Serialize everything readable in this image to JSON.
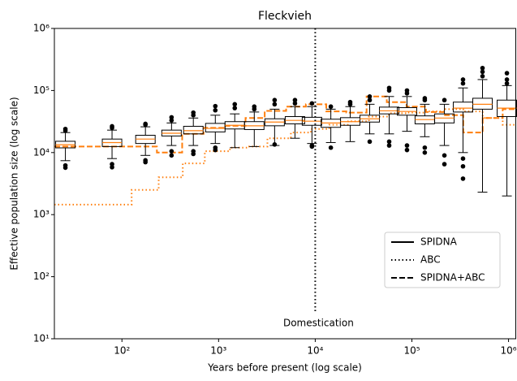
{
  "chart_data": {
    "type": "box",
    "title": "Fleckvieh",
    "xlabel": "Years before present (log scale)",
    "ylabel": "Effective population size (log scale)",
    "xscale": "log",
    "yscale": "log",
    "xlim": [
      20,
      1200000
    ],
    "ylim": [
      10,
      1000000
    ],
    "xticks": [
      {
        "value": 100,
        "label": "10²"
      },
      {
        "value": 1000,
        "label": "10³"
      },
      {
        "value": 10000,
        "label": "10⁴"
      },
      {
        "value": 100000,
        "label": "10⁵"
      },
      {
        "value": 1000000,
        "label": "10⁶"
      }
    ],
    "yticks": [
      {
        "value": 10,
        "label": "10¹"
      },
      {
        "value": 100,
        "label": "10²"
      },
      {
        "value": 1000,
        "label": "10³"
      },
      {
        "value": 10000,
        "label": "10⁴"
      },
      {
        "value": 100000,
        "label": "10⁵"
      },
      {
        "value": 1000000,
        "label": "10⁶"
      }
    ],
    "boxes": {
      "name": "SPIDNA",
      "color": "#000000",
      "median_color": "#ff7f0e",
      "x": [
        26,
        79,
        175,
        326,
        548,
        925,
        1470,
        2340,
        3800,
        6170,
        9250,
        14500,
        23000,
        36600,
        58200,
        89000,
        136000,
        217000,
        338000,
        538000,
        962000
      ],
      "whislo": [
        7400,
        8000,
        9000,
        13000,
        13000,
        14000,
        12000,
        12500,
        13000,
        17000,
        14000,
        14500,
        15000,
        20000,
        20000,
        22000,
        18000,
        13000,
        10000,
        2300,
        2000
      ],
      "q1": [
        11900,
        12500,
        14000,
        18500,
        20000,
        21500,
        24000,
        23500,
        27000,
        29000,
        27500,
        25500,
        27500,
        31000,
        42000,
        40000,
        29000,
        30000,
        45000,
        50000,
        38000
      ],
      "med": [
        13400,
        14500,
        16500,
        20500,
        22500,
        24500,
        27500,
        27000,
        31000,
        33000,
        32000,
        30000,
        31500,
        35000,
        47000,
        46000,
        34000,
        36000,
        52000,
        60000,
        52000
      ],
      "q3": [
        15200,
        16500,
        19000,
        23000,
        26500,
        29500,
        31500,
        31500,
        35000,
        38000,
        37000,
        34500,
        36500,
        40000,
        54000,
        53000,
        39000,
        42000,
        65000,
        75000,
        70000
      ],
      "whishi": [
        21000,
        23000,
        26000,
        30000,
        36000,
        40000,
        42000,
        45000,
        50000,
        55000,
        55000,
        50000,
        55000,
        60000,
        80000,
        80000,
        60000,
        60000,
        110000,
        150000,
        120000
      ],
      "fliers": [
        [
          5700,
          6200,
          22500,
          24000
        ],
        [
          5800,
          6500,
          25000,
          26500
        ],
        [
          7000,
          7500,
          28000,
          29000
        ],
        [
          9000,
          10500,
          33000,
          37000
        ],
        [
          9500,
          10500,
          40000,
          44000
        ],
        [
          11000,
          12000,
          48000,
          56000
        ],
        [
          52000,
          60000
        ],
        [
          50000,
          55000
        ],
        [
          13500,
          60000,
          70000
        ],
        [
          62000,
          70000
        ],
        [
          12500,
          13000,
          62000
        ],
        [
          12000,
          55000
        ],
        [
          60000,
          65000
        ],
        [
          15000,
          70000,
          80000
        ],
        [
          13000,
          15000,
          100000,
          110000
        ],
        [
          11000,
          13000,
          90000,
          100000
        ],
        [
          10000,
          12000,
          70000,
          75000
        ],
        [
          6500,
          9000,
          70000
        ],
        [
          3800,
          6000,
          8000,
          130000,
          150000
        ],
        [
          170000,
          200000,
          230000
        ],
        [
          130000,
          150000,
          190000
        ]
      ]
    },
    "series": [
      {
        "name": "ABC",
        "color": "#ff7f0e",
        "style": "dotted",
        "x": [
          20,
          126,
          240,
          426,
          720,
          1310,
          2000,
          3200,
          5600,
          9000,
          14000,
          22000,
          36000,
          58000,
          90000,
          140000,
          220000,
          340000,
          540000,
          870000,
          1200000
        ],
        "values": [
          1450,
          2500,
          4000,
          6700,
          10500,
          12000,
          12500,
          17000,
          21000,
          24000,
          28000,
          32000,
          38000,
          43000,
          44000,
          46000,
          50000,
          46000,
          36000,
          28000,
          28000
        ]
      },
      {
        "name": "SPIDNA+ABC",
        "color": "#ff7f0e",
        "style": "dashed",
        "x": [
          20,
          110,
          230,
          420,
          700,
          1150,
          1900,
          3000,
          5000,
          8000,
          13000,
          21000,
          34000,
          55000,
          88000,
          140000,
          220000,
          340000,
          540000,
          870000,
          1200000
        ],
        "values": [
          12500,
          12500,
          10000,
          20000,
          25000,
          27000,
          36000,
          47000,
          55000,
          60000,
          46000,
          44000,
          80000,
          65000,
          55000,
          45000,
          40000,
          21000,
          36000,
          50000,
          50000
        ]
      }
    ],
    "vline": {
      "x": 10000,
      "color": "#000000",
      "style": "dotted",
      "label": "Domestication"
    },
    "legend": {
      "loc": "lower right",
      "color": "#000000"
    }
  }
}
